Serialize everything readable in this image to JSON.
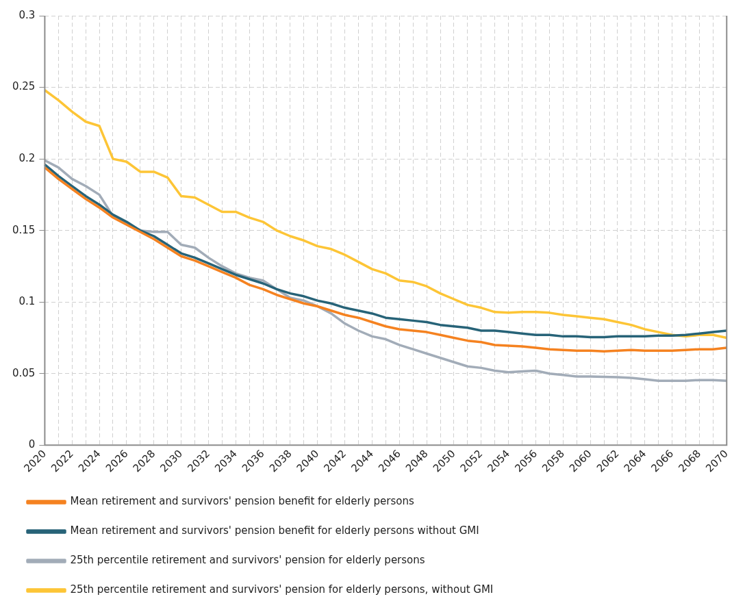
{
  "chart_data": {
    "type": "line",
    "categories": [
      "2020",
      null,
      "2022",
      null,
      "2024",
      null,
      "2026",
      null,
      "2028",
      null,
      "2030",
      null,
      "2032",
      null,
      "2034",
      null,
      "2036",
      null,
      "2038",
      null,
      "2040",
      null,
      "2042",
      null,
      "2044",
      null,
      "2046",
      null,
      "2048",
      null,
      "2050",
      null,
      "2052",
      null,
      "2054",
      null,
      "2056",
      null,
      "2058",
      null,
      "2060",
      null,
      "2062",
      null,
      "2064",
      null,
      "2066",
      null,
      "2068",
      null,
      "2070"
    ],
    "ylim": [
      0,
      0.3
    ],
    "yticks": [
      0,
      0.05,
      0.1,
      0.15,
      0.2,
      0.25,
      0.3
    ],
    "grid": true,
    "legend": "bottom",
    "marker": "none",
    "line_style": "solid",
    "series": [
      {
        "name": "Mean retirement and survivors' pension benefit for elderly persons",
        "color": "#f58220",
        "values": [
          0.194,
          0.186,
          0.179,
          0.172,
          0.166,
          0.159,
          0.154,
          0.149,
          0.144,
          0.138,
          0.132,
          0.129,
          0.125,
          0.121,
          0.117,
          0.112,
          0.109,
          0.105,
          0.102,
          0.099,
          0.097,
          0.094,
          0.091,
          0.089,
          0.086,
          0.083,
          0.081,
          0.08,
          0.079,
          0.077,
          0.075,
          0.073,
          0.072,
          0.07,
          0.0695,
          0.069,
          0.068,
          0.067,
          0.0665,
          0.066,
          0.066,
          0.0655,
          0.066,
          0.0665,
          0.066,
          0.066,
          0.066,
          0.0665,
          0.067,
          0.067,
          0.068
        ]
      },
      {
        "name": "Mean retirement and survivors' pension benefit for elderly persons without GMI",
        "color": "#276378",
        "values": [
          0.196,
          0.188,
          0.181,
          0.174,
          0.168,
          0.161,
          0.156,
          0.15,
          0.146,
          0.14,
          0.134,
          0.131,
          0.127,
          0.123,
          0.119,
          0.116,
          0.113,
          0.109,
          0.106,
          0.104,
          0.101,
          0.099,
          0.096,
          0.094,
          0.092,
          0.089,
          0.088,
          0.087,
          0.086,
          0.084,
          0.083,
          0.082,
          0.08,
          0.08,
          0.079,
          0.078,
          0.077,
          0.077,
          0.076,
          0.076,
          0.0755,
          0.0755,
          0.076,
          0.076,
          0.076,
          0.0765,
          0.0765,
          0.077,
          0.078,
          0.079,
          0.08
        ]
      },
      {
        "name": "25th percentile retirement and survivors' pension for elderly persons",
        "color": "#a2acb8",
        "values": [
          0.199,
          0.194,
          0.186,
          0.181,
          0.175,
          0.16,
          0.155,
          0.15,
          0.149,
          0.149,
          0.14,
          0.138,
          0.131,
          0.125,
          0.12,
          0.117,
          0.115,
          0.109,
          0.103,
          0.101,
          0.097,
          0.092,
          0.085,
          0.08,
          0.076,
          0.074,
          0.07,
          0.067,
          0.064,
          0.061,
          0.058,
          0.055,
          0.054,
          0.052,
          0.051,
          0.0515,
          0.052,
          0.05,
          0.049,
          0.048,
          0.048,
          0.0477,
          0.0475,
          0.047,
          0.046,
          0.045,
          0.045,
          0.045,
          0.0455,
          0.0455,
          0.045
        ]
      },
      {
        "name": "25th percentile retirement and survivors' pension for elderly persons, without GMI",
        "color": "#fdc536",
        "values": [
          0.248,
          0.241,
          0.233,
          0.226,
          0.223,
          0.2,
          0.198,
          0.191,
          0.191,
          0.187,
          0.174,
          0.173,
          0.168,
          0.163,
          0.163,
          0.159,
          0.156,
          0.15,
          0.146,
          0.143,
          0.139,
          0.137,
          0.133,
          0.128,
          0.123,
          0.12,
          0.115,
          0.114,
          0.111,
          0.106,
          0.102,
          0.098,
          0.096,
          0.093,
          0.0925,
          0.093,
          0.093,
          0.0925,
          0.091,
          0.09,
          0.089,
          0.088,
          0.086,
          0.084,
          0.081,
          0.079,
          0.077,
          0.076,
          0.077,
          0.077,
          0.075
        ]
      }
    ]
  }
}
